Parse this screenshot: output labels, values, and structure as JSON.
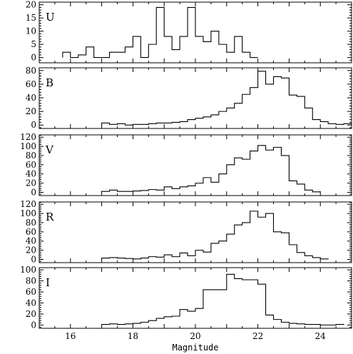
{
  "chart_data": {
    "type": "bar",
    "style": "step-histogram",
    "xlabel": "Magnitude",
    "xlim": [
      15,
      25
    ],
    "x_ticks": [
      16,
      18,
      20,
      22,
      24
    ],
    "bin_width": 0.25,
    "panels": [
      {
        "name": "U",
        "ylim": [
          -2,
          21
        ],
        "y_ticks": [
          0,
          5,
          10,
          15,
          20
        ],
        "bin_starts": [
          15.75,
          16.0,
          16.25,
          16.5,
          16.75,
          17.0,
          17.25,
          17.5,
          17.75,
          18.0,
          18.25,
          18.5,
          18.75,
          19.0,
          19.25,
          19.5,
          19.75,
          20.0,
          20.25,
          20.5,
          20.75,
          21.0,
          21.25,
          21.5,
          21.75
        ],
        "values": [
          2,
          0,
          1,
          4,
          0,
          0,
          2,
          2,
          4,
          8,
          0,
          5,
          19,
          8,
          3,
          8,
          19,
          8,
          6,
          10,
          5,
          2,
          8,
          2,
          0
        ]
      },
      {
        "name": "B",
        "ylim": [
          -5,
          84
        ],
        "y_ticks": [
          0,
          20,
          40,
          60,
          80
        ],
        "bin_starts": [
          17.0,
          17.25,
          17.5,
          17.75,
          18.0,
          18.25,
          18.5,
          18.75,
          19.0,
          19.25,
          19.5,
          19.75,
          20.0,
          20.25,
          20.5,
          20.75,
          21.0,
          21.25,
          21.5,
          21.75,
          22.0,
          22.25,
          22.5,
          22.75,
          23.0,
          23.25,
          23.5,
          23.75,
          24.0,
          24.25,
          24.5,
          24.75
        ],
        "values": [
          3,
          1,
          2,
          0,
          1,
          1,
          2,
          3,
          3,
          4,
          5,
          8,
          10,
          12,
          15,
          20,
          25,
          32,
          45,
          55,
          79,
          60,
          71,
          69,
          44,
          42,
          25,
          8,
          5,
          2,
          1,
          2
        ]
      },
      {
        "name": "V",
        "ylim": [
          -7,
          125
        ],
        "y_ticks": [
          0,
          20,
          40,
          60,
          80,
          100,
          120
        ],
        "bin_starts": [
          17.0,
          17.25,
          17.5,
          17.75,
          18.0,
          18.25,
          18.5,
          18.75,
          19.0,
          19.25,
          19.5,
          19.75,
          20.0,
          20.25,
          20.5,
          20.75,
          21.0,
          21.25,
          21.5,
          21.75,
          22.0,
          22.25,
          22.5,
          22.75,
          23.0,
          23.25,
          23.5,
          23.75
        ],
        "values": [
          2,
          5,
          2,
          2,
          3,
          4,
          6,
          5,
          12,
          8,
          12,
          14,
          20,
          32,
          22,
          40,
          60,
          75,
          72,
          90,
          102,
          92,
          98,
          80,
          25,
          18,
          5,
          1
        ]
      },
      {
        "name": "R",
        "ylim": [
          -7,
          125
        ],
        "y_ticks": [
          0,
          20,
          40,
          60,
          80,
          100,
          120
        ],
        "bin_starts": [
          17.0,
          17.25,
          17.5,
          17.75,
          18.0,
          18.25,
          18.5,
          18.75,
          19.0,
          19.25,
          19.5,
          19.75,
          20.0,
          20.25,
          20.5,
          20.75,
          21.0,
          21.25,
          21.5,
          21.75,
          22.0,
          22.25,
          22.5,
          22.75,
          23.0,
          23.25,
          23.5,
          23.75,
          24.0
        ],
        "values": [
          3,
          4,
          3,
          2,
          1,
          3,
          6,
          5,
          10,
          6,
          14,
          8,
          20,
          16,
          35,
          40,
          55,
          75,
          80,
          105,
          92,
          100,
          60,
          58,
          32,
          15,
          8,
          4,
          1
        ]
      },
      {
        "name": "I",
        "ylim": [
          -6,
          104
        ],
        "y_ticks": [
          0,
          20,
          40,
          60,
          80,
          100
        ],
        "bin_starts": [
          17.0,
          17.25,
          17.5,
          17.75,
          18.0,
          18.25,
          18.5,
          18.75,
          19.0,
          19.25,
          19.5,
          19.75,
          20.0,
          20.25,
          20.5,
          20.75,
          21.0,
          21.25,
          21.5,
          21.75,
          22.0,
          22.25,
          22.5,
          22.75,
          23.0,
          23.25,
          23.5,
          23.75,
          24.0,
          24.25,
          24.5
        ],
        "values": [
          1,
          2,
          1,
          2,
          3,
          5,
          8,
          12,
          15,
          16,
          28,
          25,
          30,
          64,
          64,
          64,
          92,
          84,
          82,
          82,
          74,
          18,
          10,
          5,
          3,
          2,
          1,
          1,
          0,
          0,
          1
        ]
      }
    ]
  }
}
